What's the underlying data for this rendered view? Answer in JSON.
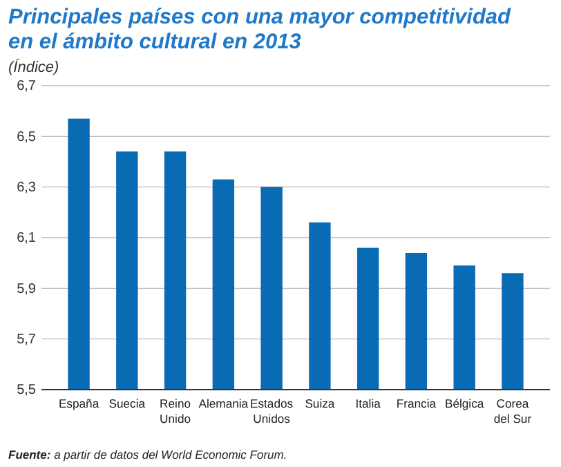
{
  "chart_data": {
    "type": "bar",
    "title": "Principales países con una mayor competitividad en el ámbito cultural en 2013",
    "subtitle": "(Índice)",
    "categories": [
      "España",
      "Suecia",
      "Reino\nUnido",
      "Alemania",
      "Estados\nUnidos",
      "Suiza",
      "Italia",
      "Francia",
      "Bélgica",
      "Corea\ndel Sur"
    ],
    "values": [
      6.57,
      6.44,
      6.44,
      6.33,
      6.3,
      6.16,
      6.06,
      6.04,
      5.99,
      5.96
    ],
    "color": "#0a6bb5",
    "ylim": [
      5.5,
      6.7
    ],
    "yticks": [
      {
        "value": 5.5,
        "label": "5,5"
      },
      {
        "value": 5.7,
        "label": "5,7"
      },
      {
        "value": 5.9,
        "label": "5,9"
      },
      {
        "value": 6.1,
        "label": "6,1"
      },
      {
        "value": 6.3,
        "label": "6,3"
      },
      {
        "value": 6.5,
        "label": "6,5"
      },
      {
        "value": 6.7,
        "label": "6,7"
      }
    ],
    "grid": "y",
    "annotations": [
      "Fuente: a partir de datos del World Economic Forum."
    ]
  }
}
